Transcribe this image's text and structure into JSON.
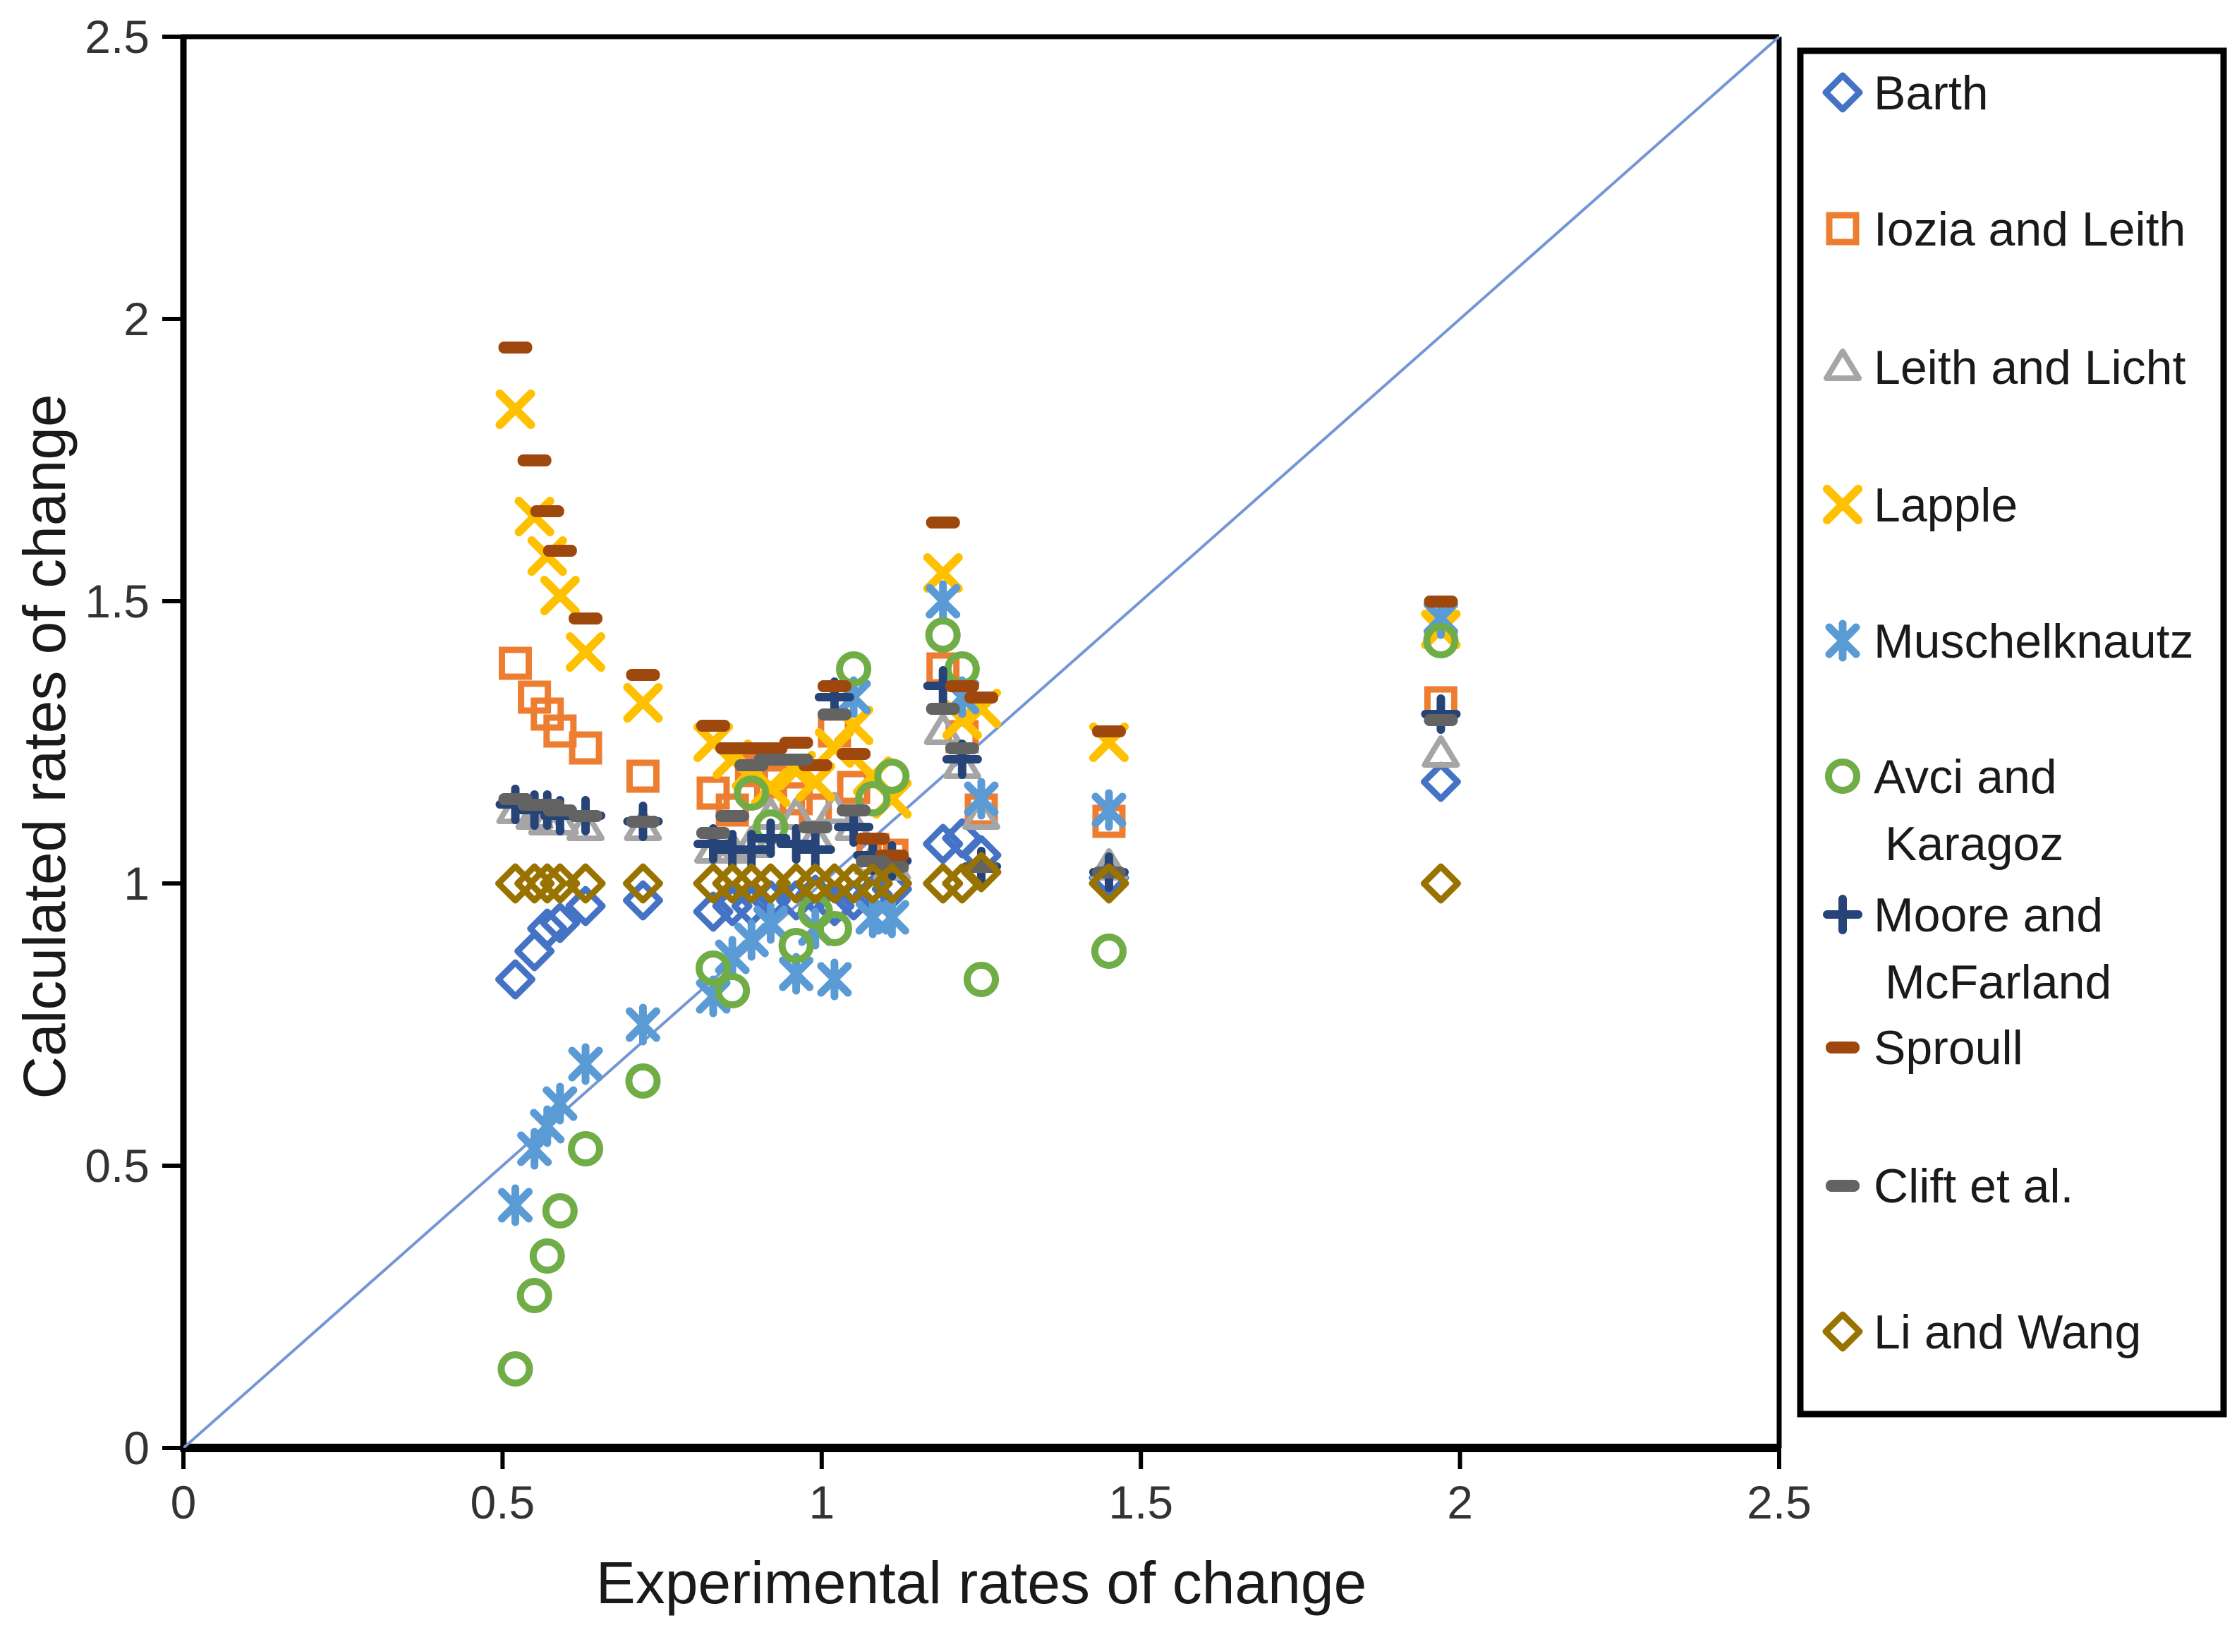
{
  "chart_data": {
    "type": "scatter",
    "title": "",
    "xlabel": "Experimental rates of change",
    "ylabel": "Calculated rates of change",
    "xlim": [
      0,
      2.5
    ],
    "ylim": [
      0,
      2.5
    ],
    "grid": false,
    "legend_position": "right",
    "x_ticks": [
      "0",
      "0.5",
      "1",
      "1.5",
      "2",
      "2.5"
    ],
    "x_tick_values": [
      0,
      0.5,
      1,
      1.5,
      2,
      2.5
    ],
    "y_ticks": [
      "0",
      "0.5",
      "1",
      "1.5",
      "2",
      "2.5"
    ],
    "y_tick_values": [
      0,
      0.5,
      1,
      1.5,
      2,
      2.5
    ],
    "reference_line": {
      "name": "identity-line",
      "from": [
        0,
        0
      ],
      "to": [
        2.5,
        2.5
      ],
      "color": "#7396D5"
    },
    "x": [
      0.52,
      0.55,
      0.57,
      0.59,
      0.63,
      0.72,
      0.83,
      0.86,
      0.89,
      0.92,
      0.96,
      0.99,
      1.02,
      1.05,
      1.08,
      1.11,
      1.19,
      1.22,
      1.25,
      1.45,
      1.97
    ],
    "series": [
      {
        "name": "Barth",
        "label_lines": [
          "Barth"
        ],
        "marker": "diamond",
        "color": "#4472C4",
        "values": [
          0.83,
          0.88,
          0.92,
          0.93,
          0.96,
          0.97,
          0.95,
          0.96,
          0.96,
          0.97,
          0.97,
          0.98,
          0.96,
          0.97,
          0.98,
          0.99,
          1.07,
          1.08,
          1.05,
          1.01,
          1.18
        ]
      },
      {
        "name": "Iozia and Leith",
        "label_lines": [
          "Iozia and Leith"
        ],
        "marker": "square",
        "color": "#ED7D31",
        "values": [
          1.39,
          1.33,
          1.3,
          1.27,
          1.24,
          1.19,
          1.16,
          1.13,
          1.2,
          1.18,
          1.15,
          1.13,
          1.27,
          1.17,
          1.06,
          1.05,
          1.38,
          1.26,
          1.13,
          1.11,
          1.32
        ]
      },
      {
        "name": "Leith and Licht",
        "label_lines": [
          "Leith and Licht"
        ],
        "marker": "triangle",
        "color": "#A5A5A5",
        "values": [
          1.13,
          1.12,
          1.11,
          1.11,
          1.1,
          1.1,
          1.06,
          1.06,
          1.07,
          1.12,
          1.12,
          1.08,
          1.13,
          1.1,
          1.04,
          1.03,
          1.27,
          1.21,
          1.12,
          1.03,
          1.23
        ]
      },
      {
        "name": "Lapple",
        "label_lines": [
          "Lapple"
        ],
        "marker": "x",
        "color": "#FFC000",
        "values": [
          1.84,
          1.65,
          1.58,
          1.51,
          1.41,
          1.32,
          1.25,
          1.22,
          1.2,
          1.17,
          1.2,
          1.18,
          1.24,
          1.28,
          1.19,
          1.15,
          1.55,
          1.29,
          1.31,
          1.25,
          1.45
        ]
      },
      {
        "name": "Muschelknautz",
        "label_lines": [
          "Muschelknautz"
        ],
        "marker": "asterisk",
        "color": "#5B9BD5",
        "values": [
          0.43,
          0.53,
          0.57,
          0.61,
          0.68,
          0.75,
          0.8,
          0.87,
          0.9,
          0.93,
          0.84,
          0.92,
          0.83,
          1.33,
          0.94,
          0.94,
          1.5,
          1.33,
          1.15,
          1.13,
          1.47
        ]
      },
      {
        "name": "Avci and Karagoz",
        "label_lines": [
          "Avci and",
          "Karagoz"
        ],
        "marker": "circle",
        "color": "#70AD47",
        "values": [
          0.14,
          0.27,
          0.34,
          0.42,
          0.53,
          0.65,
          0.85,
          0.81,
          1.16,
          1.1,
          0.89,
          0.95,
          0.92,
          1.38,
          1.15,
          1.19,
          1.44,
          1.38,
          0.83,
          0.88,
          1.43
        ]
      },
      {
        "name": "Moore and McFarland",
        "label_lines": [
          "Moore and",
          "McFarland"
        ],
        "marker": "plus",
        "color": "#264478",
        "values": [
          1.14,
          1.13,
          1.13,
          1.12,
          1.12,
          1.11,
          1.07,
          1.06,
          1.06,
          1.08,
          1.07,
          1.06,
          1.33,
          1.1,
          1.05,
          1.04,
          1.35,
          1.22,
          1.03,
          1.02,
          1.3
        ]
      },
      {
        "name": "Sproull",
        "label_lines": [
          "Sproull"
        ],
        "marker": "dash",
        "color": "#9E480E",
        "values": [
          1.95,
          1.75,
          1.66,
          1.59,
          1.47,
          1.37,
          1.28,
          1.24,
          1.24,
          1.24,
          1.25,
          1.21,
          1.35,
          1.23,
          1.08,
          1.05,
          1.64,
          1.35,
          1.33,
          1.27,
          1.5
        ]
      },
      {
        "name": "Clift et al.",
        "label_lines": [
          "Clift et al."
        ],
        "marker": "dash",
        "color": "#636363",
        "values": [
          1.15,
          1.14,
          1.14,
          1.13,
          1.12,
          1.11,
          1.09,
          1.12,
          1.21,
          1.22,
          1.22,
          1.1,
          1.3,
          1.13,
          1.04,
          1.03,
          1.31,
          1.24,
          1.03,
          1.02,
          1.29
        ]
      },
      {
        "name": "Li and Wang",
        "label_lines": [
          "Li and Wang"
        ],
        "marker": "diamond",
        "color": "#997300",
        "values": [
          1.0,
          1.0,
          1.0,
          1.0,
          1.0,
          1.0,
          1.0,
          1.0,
          1.0,
          1.0,
          1.0,
          1.0,
          1.0,
          1.0,
          1.0,
          1.0,
          1.0,
          1.0,
          1.02,
          1.0,
          1.0
        ]
      }
    ]
  }
}
